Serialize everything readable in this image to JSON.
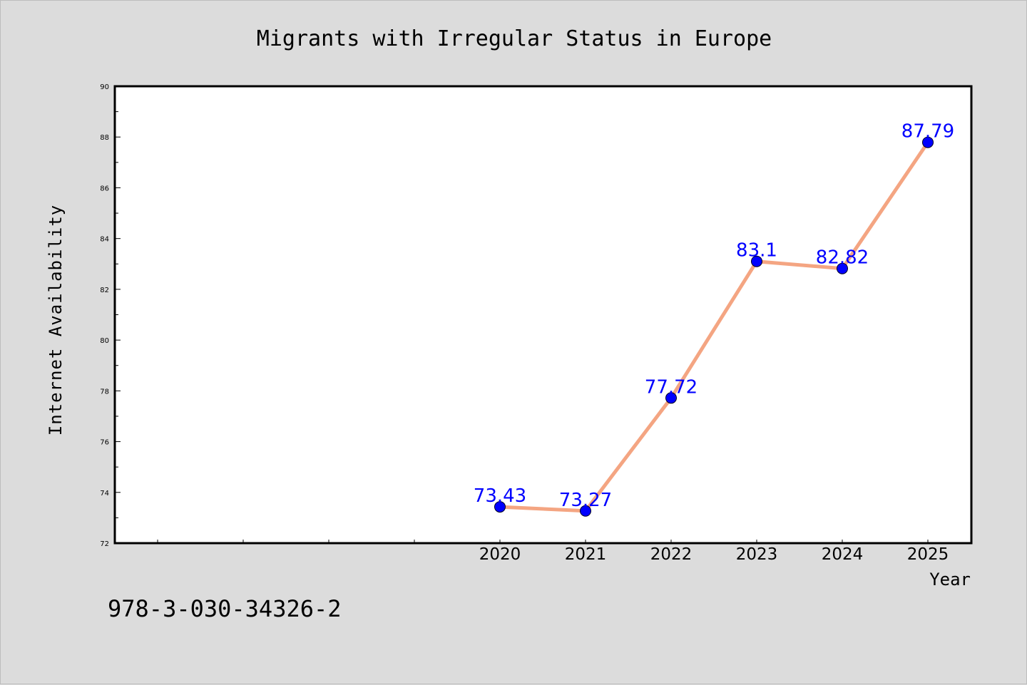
{
  "chart_data": {
    "type": "line",
    "title": "Migrants with Irregular Status in Europe",
    "xlabel": "Year",
    "ylabel": "Internet Availability",
    "x": [
      "2020",
      "2021",
      "2022",
      "2023",
      "2024",
      "2025"
    ],
    "values": [
      73.43,
      73.27,
      77.72,
      83.1,
      82.82,
      87.79
    ],
    "data_labels": [
      "73.43",
      "73.27",
      "77.72",
      "83.1",
      "82.82",
      "87.79"
    ],
    "ylim": [
      72,
      90
    ],
    "yticks": [
      "72",
      "74",
      "76",
      "78",
      "80",
      "82",
      "84",
      "86",
      "88",
      "90"
    ],
    "grid": false,
    "line_color": "#f4a582",
    "marker_color": "#0000ff",
    "label_color": "#0000ff"
  },
  "footer": {
    "isbn": "978-3-030-34326-2"
  }
}
